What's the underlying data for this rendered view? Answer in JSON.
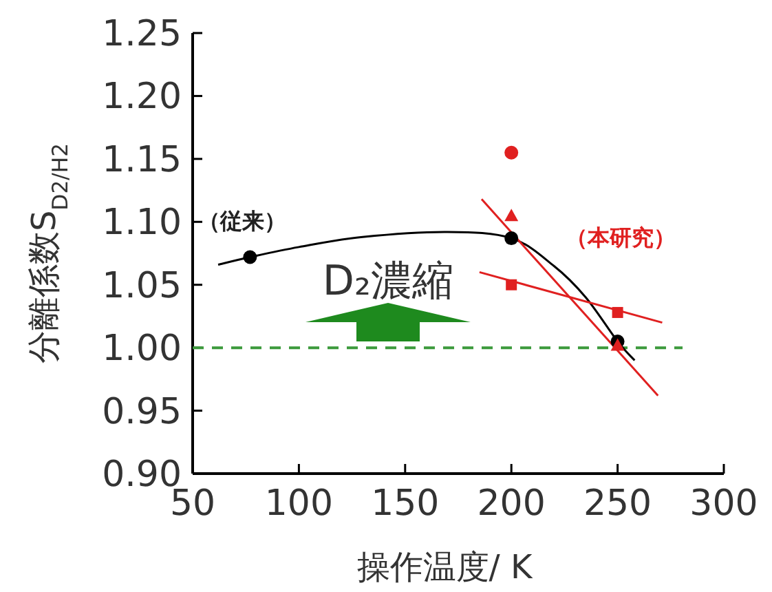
{
  "chart_data": {
    "type": "line",
    "xlabel": "操作温度/ K",
    "ylabel": "分離係数S$_{D2/H2}$",
    "xlim": [
      50,
      300
    ],
    "xticks": [
      50,
      100,
      150,
      200,
      250,
      300
    ],
    "ylim": [
      0.9,
      1.25
    ],
    "yticks": [
      {
        "value": 0.9,
        "label": "0.90"
      },
      {
        "value": 0.95,
        "label": "0.95"
      },
      {
        "value": 1.0,
        "label": "1.00"
      },
      {
        "value": 1.05,
        "label": "1.05"
      },
      {
        "value": 1.1,
        "label": "1.10"
      },
      {
        "value": 1.15,
        "label": "1.15"
      },
      {
        "value": 1.2,
        "label": "1.20"
      },
      {
        "value": 1.25,
        "label": "1.25"
      }
    ],
    "grid": false,
    "series": [
      {
        "color": "#000000",
        "marker": "none",
        "x": [
          62,
          77,
          100,
          130,
          170,
          200,
          220,
          235,
          250,
          258
        ],
        "values": [
          1.066,
          1.072,
          1.08,
          1.088,
          1.092,
          1.087,
          1.065,
          1.04,
          1.005,
          0.99
        ]
      },
      {
        "color": "#e02020",
        "marker": "none",
        "x": [
          186,
          269
        ],
        "values": [
          1.118,
          0.962
        ]
      },
      {
        "color": "#e02020",
        "marker": "none",
        "x": [
          185,
          271
        ],
        "values": [
          1.06,
          1.02
        ]
      },
      {
        "type": "scatter",
        "color": "#000000",
        "marker": "circle",
        "x": [
          77,
          200,
          250
        ],
        "values": [
          1.072,
          1.087,
          1.005
        ]
      },
      {
        "type": "scatter",
        "color": "#e02020",
        "marker": "circle",
        "x": [
          200
        ],
        "values": [
          1.155
        ]
      },
      {
        "type": "scatter",
        "color": "#e02020",
        "marker": "triangle",
        "x": [
          200,
          250
        ],
        "values": [
          1.105,
          1.002
        ]
      },
      {
        "type": "scatter",
        "color": "#e02020",
        "marker": "square",
        "x": [
          200,
          250
        ],
        "values": [
          1.05,
          1.028
        ]
      }
    ],
    "ref_lines": [
      {
        "axis": "y",
        "value": 1.0,
        "color": "#3c9a3c",
        "line_style": "dashed"
      }
    ],
    "annotations": [
      "（従来）",
      "（本研究）",
      "D₂濃縮"
    ]
  }
}
